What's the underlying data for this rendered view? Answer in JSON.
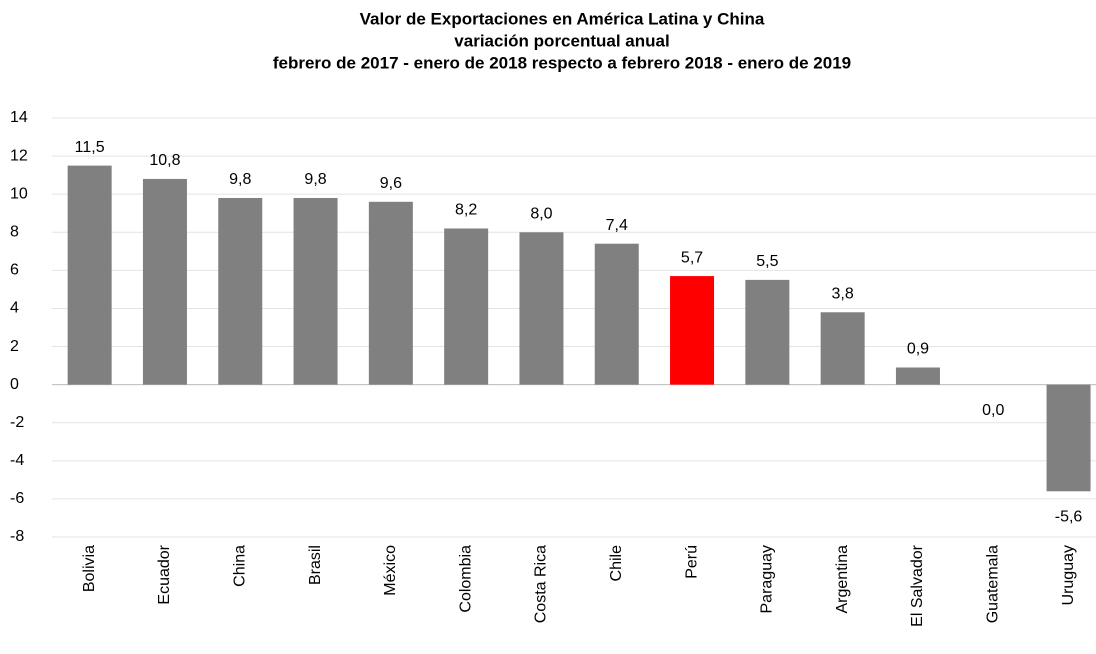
{
  "chart_data": {
    "type": "bar",
    "title": "Valor de Exportaciones en América Latina y China",
    "subtitle": [
      "variación porcentual anual",
      "febrero de 2017 - enero de 2018 respecto a febrero 2018 - enero de 2019"
    ],
    "categories": [
      "Bolivia",
      "Ecuador",
      "China",
      "Brasil",
      "México",
      "Colombia",
      "Costa Rica",
      "Chile",
      "Perú",
      "Paraguay",
      "Argentina",
      "El Salvador",
      "Guatemala",
      "Uruguay"
    ],
    "values": [
      11.5,
      10.8,
      9.8,
      9.8,
      9.6,
      8.2,
      8.0,
      7.4,
      5.7,
      5.5,
      3.8,
      0.9,
      0.0,
      -5.6
    ],
    "value_labels": [
      "11,5",
      "10,8",
      "9,8",
      "9,8",
      "9,6",
      "8,2",
      "8,0",
      "7,4",
      "5,7",
      "5,5",
      "3,8",
      "0,9",
      "0,0",
      "-5,6"
    ],
    "colors": [
      "#808080",
      "#808080",
      "#808080",
      "#808080",
      "#808080",
      "#808080",
      "#808080",
      "#808080",
      "#ff0000",
      "#808080",
      "#808080",
      "#808080",
      "#808080",
      "#808080"
    ],
    "ylim": [
      -8,
      14
    ],
    "yticks": [
      -8,
      -6,
      -4,
      -2,
      0,
      2,
      4,
      6,
      8,
      10,
      12,
      14
    ],
    "grid": true
  }
}
